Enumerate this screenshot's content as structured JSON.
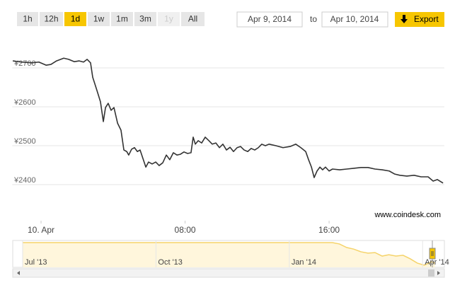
{
  "range_selector": {
    "buttons": [
      {
        "label": "1h",
        "state": "normal"
      },
      {
        "label": "12h",
        "state": "normal"
      },
      {
        "label": "1d",
        "state": "selected"
      },
      {
        "label": "1w",
        "state": "normal"
      },
      {
        "label": "1m",
        "state": "normal"
      },
      {
        "label": "3m",
        "state": "normal"
      },
      {
        "label": "1y",
        "state": "disabled"
      },
      {
        "label": "All",
        "state": "normal"
      }
    ]
  },
  "date_range": {
    "from": "Apr 9, 2014",
    "separator": "to",
    "to": "Apr 10, 2014"
  },
  "export": {
    "label": "Export"
  },
  "chart_data": [
    {
      "type": "line",
      "color": "#333333",
      "credit": "www.coindesk.com",
      "grid": true,
      "xlim": [
        -1.6,
        22.4
      ],
      "ylim": [
        2350,
        2750
      ],
      "xticks": [
        {
          "value": 0,
          "label": "10. Apr"
        },
        {
          "value": 8,
          "label": "08:00"
        },
        {
          "value": 16,
          "label": "16:00"
        }
      ],
      "yticks": [
        {
          "value": 2400,
          "label": "¥2400"
        },
        {
          "value": 2500,
          "label": "¥2500"
        },
        {
          "value": 2600,
          "label": "¥2600"
        },
        {
          "value": 2700,
          "label": "¥2700"
        }
      ],
      "x": [
        -1.57,
        -1.1,
        -0.51,
        -0.12,
        0.28,
        0.55,
        0.86,
        1.26,
        1.53,
        1.85,
        2.12,
        2.36,
        2.56,
        2.75,
        2.87,
        3.03,
        3.18,
        3.3,
        3.46,
        3.58,
        3.73,
        3.89,
        4.05,
        4.25,
        4.44,
        4.6,
        4.76,
        4.87,
        5.03,
        5.19,
        5.35,
        5.5,
        5.66,
        5.82,
        5.97,
        6.17,
        6.37,
        6.56,
        6.76,
        6.96,
        7.15,
        7.35,
        7.55,
        7.74,
        7.94,
        8.14,
        8.33,
        8.45,
        8.57,
        8.73,
        8.92,
        9.12,
        9.32,
        9.51,
        9.71,
        9.91,
        10.1,
        10.3,
        10.5,
        10.69,
        10.89,
        11.08,
        11.28,
        11.48,
        11.67,
        11.87,
        12.07,
        12.26,
        12.46,
        12.66,
        13.05,
        13.44,
        13.84,
        14.15,
        14.43,
        14.7,
        14.86,
        15.02,
        15.17,
        15.33,
        15.49,
        15.64,
        15.8,
        16.0,
        16.19,
        16.59,
        16.98,
        17.37,
        17.77,
        18.16,
        18.55,
        18.95,
        19.34,
        19.65,
        19.93,
        20.32,
        20.72,
        21.11,
        21.5,
        21.78,
        22.01,
        22.33
      ],
      "values": [
        2718,
        2715,
        2713,
        2715,
        2707,
        2709,
        2718,
        2725,
        2722,
        2716,
        2718,
        2715,
        2722,
        2713,
        2676,
        2653,
        2631,
        2613,
        2562,
        2598,
        2609,
        2591,
        2598,
        2558,
        2540,
        2489,
        2485,
        2476,
        2491,
        2495,
        2485,
        2489,
        2467,
        2445,
        2458,
        2453,
        2458,
        2449,
        2456,
        2476,
        2464,
        2482,
        2476,
        2478,
        2484,
        2480,
        2482,
        2522,
        2504,
        2513,
        2507,
        2522,
        2513,
        2504,
        2507,
        2495,
        2504,
        2489,
        2496,
        2485,
        2495,
        2498,
        2489,
        2485,
        2493,
        2489,
        2495,
        2504,
        2500,
        2504,
        2500,
        2495,
        2498,
        2504,
        2495,
        2485,
        2464,
        2445,
        2418,
        2435,
        2445,
        2438,
        2445,
        2435,
        2440,
        2438,
        2440,
        2442,
        2444,
        2444,
        2440,
        2438,
        2435,
        2427,
        2424,
        2422,
        2424,
        2420,
        2420,
        2409,
        2413,
        2404
      ]
    },
    {
      "type": "area",
      "color": "#f5d36a",
      "fill": "#fff6dc",
      "xlim": [
        -0.22,
        9.49
      ],
      "ylim": [
        0,
        100
      ],
      "xticks": [
        {
          "value": 0,
          "label": "Jul '13"
        },
        {
          "value": 3,
          "label": "Oct '13"
        },
        {
          "value": 6,
          "label": "Jan '14"
        },
        {
          "value": 9,
          "label": "Apr '14"
        }
      ],
      "x": [
        0,
        1.08,
        2.67,
        4.27,
        5.86,
        6.97,
        7.13,
        7.29,
        7.45,
        7.61,
        7.77,
        7.93,
        8.09,
        8.24,
        8.4,
        8.56,
        8.72,
        8.88,
        9.04,
        9.2,
        9.28
      ],
      "values": [
        92,
        92,
        92,
        92,
        92,
        92,
        87,
        74,
        68,
        58,
        53,
        55,
        42,
        47,
        42,
        45,
        32,
        16,
        8,
        21,
        16
      ]
    }
  ]
}
